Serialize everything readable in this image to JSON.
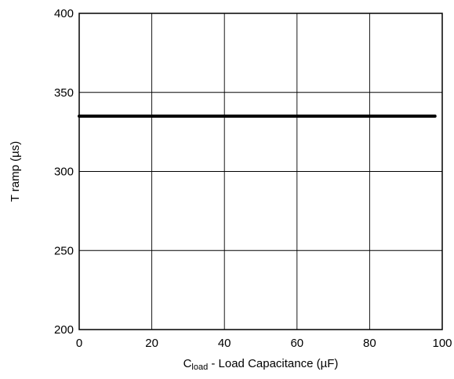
{
  "chart_data": {
    "type": "line",
    "title": "",
    "xlabel": {
      "main": "C",
      "subscript": "load",
      "rest": " - Load Capacitance (µF)"
    },
    "ylabel": "T ramp (µs)",
    "xlim": [
      0,
      100
    ],
    "ylim": [
      200,
      400
    ],
    "xticks": [
      0,
      20,
      40,
      60,
      80,
      100
    ],
    "yticks": [
      200,
      250,
      300,
      350,
      400
    ],
    "xtick_labels": [
      "0",
      "20",
      "40",
      "60",
      "80",
      "100"
    ],
    "ytick_labels": [
      "200",
      "250",
      "300",
      "350",
      "400"
    ],
    "grid": true,
    "series": [
      {
        "x": [
          0,
          98
        ],
        "y": [
          335,
          335
        ],
        "color": "#000000"
      }
    ]
  }
}
